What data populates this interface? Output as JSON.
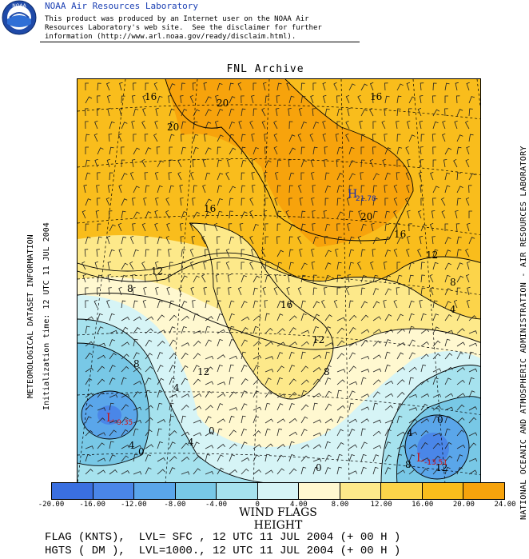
{
  "header": {
    "lab_name": "NOAA Air Resources Laboratory",
    "disclaimer_lines": [
      "This product was produced by an Internet user on the NOAA Air",
      "Resources Laboratory's web site.  See the disclaimer for further",
      "information (http://www.arl.noaa.gov/ready/disclaim.html)."
    ],
    "logo_text": "NOAA",
    "logo_icon": "noaa-seal-icon"
  },
  "map": {
    "title": "FNL Archive",
    "contour_labels": [
      "16",
      "20",
      "20",
      "16",
      "16",
      "20",
      "16",
      "12",
      "12",
      "8",
      "16",
      "12",
      "8",
      "8",
      "4",
      "12",
      "8",
      "4",
      "0",
      "4",
      "0",
      "4",
      "8",
      "12",
      "4",
      "0",
      "0"
    ],
    "highs": [
      {
        "label": "H",
        "value": "21.78"
      }
    ],
    "lows": [
      {
        "label": "L",
        "value": "-9.35"
      },
      {
        "label": "L",
        "value": "-13.51"
      }
    ]
  },
  "captions": {
    "left_1": "METEOROLOGICAL DATASET INFORMATION",
    "left_2": "Initialization time: 12 UTC 11 JUL 2004",
    "right": "NATIONAL OCEANIC AND ATMOSPHERIC ADMINISTRATION - AIR RESOURCES LABORATORY"
  },
  "colorbar": {
    "colors": [
      "#3a6fe0",
      "#4a86e8",
      "#5aa6ea",
      "#78c8e6",
      "#a6e2ee",
      "#d6f4f6",
      "#fff8d0",
      "#fde98a",
      "#fcd44a",
      "#f9bd1c",
      "#f7a30c"
    ],
    "ticks": [
      "-20.00",
      "-16.00",
      "-12.00",
      "-8.00",
      "-4.00",
      "0",
      "4.00",
      "8.00",
      "12.00",
      "16.00",
      "20.00",
      "24.00"
    ]
  },
  "legend": {
    "title_1": "WIND FLAGS",
    "title_2": "HEIGHT",
    "flag_line": "FLAG (KNTS),  LVL= SFC , 12 UTC 11 JUL 2004 (+ 00 H )",
    "hgts_line": "HGTS ( DM ),  LVL=1000., 12 UTC 11 JUL 2004 (+ 00 H )"
  }
}
